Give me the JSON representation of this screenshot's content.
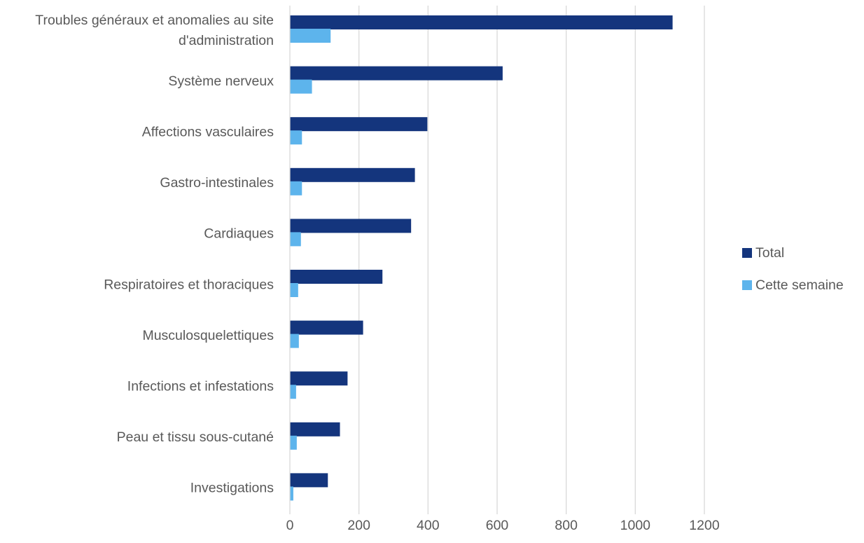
{
  "chart_data": {
    "type": "bar",
    "orientation": "horizontal",
    "categories": [
      "Troubles généraux et anomalies au site d'administration",
      "Système nerveux",
      "Affections vasculaires",
      "Gastro-intestinales",
      "Cardiaques",
      "Respiratoires et thoraciques",
      "Musculosquelettiques",
      "Infections et infestations",
      "Peau et tissu sous-cutané",
      "Investigations"
    ],
    "category_lines": [
      [
        "Troubles généraux et anomalies au site",
        "d'administration"
      ],
      [
        "Système nerveux"
      ],
      [
        "Affections vasculaires"
      ],
      [
        "Gastro-intestinales"
      ],
      [
        "Cardiaques"
      ],
      [
        "Respiratoires et thoraciques"
      ],
      [
        "Musculosquelettiques"
      ],
      [
        "Infections et infestations"
      ],
      [
        "Peau et tissu sous-cutané"
      ],
      [
        "Investigations"
      ]
    ],
    "series": [
      {
        "name": "Total",
        "color": "#14357d",
        "values": [
          1108,
          616,
          398,
          362,
          351,
          268,
          212,
          167,
          145,
          110
        ]
      },
      {
        "name": "Cette semaine",
        "color": "#5db4ec",
        "values": [
          118,
          64,
          35,
          35,
          32,
          24,
          26,
          18,
          20,
          10
        ]
      }
    ],
    "xlim": [
      0,
      1200
    ],
    "xticks": [
      0,
      200,
      400,
      600,
      800,
      1000,
      1200
    ],
    "grid": true,
    "legend_position": "right"
  }
}
